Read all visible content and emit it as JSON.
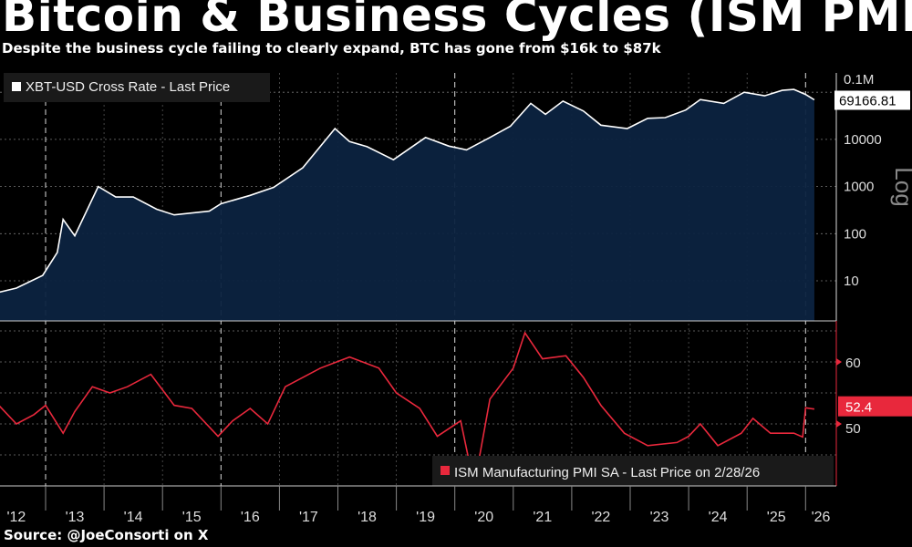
{
  "header": {
    "title": "Bitcoin & Business Cycles (ISM PMI",
    "subtitle": "Despite the business cycle failing to clearly expand, BTC has gone from $16k to $87k"
  },
  "footer": {
    "source": "Source: @JoeConsorti on X"
  },
  "chart_data": [
    {
      "type": "area",
      "series": [
        {
          "name": "XBT-USD Cross Rate - Last Price",
          "color": "#ffffff",
          "fill": "#0c2340",
          "x": [
            2012.0,
            2012.5,
            2012.95,
            2013.2,
            2013.3,
            2013.5,
            2013.9,
            2014.2,
            2014.5,
            2014.9,
            2015.2,
            2015.8,
            2016.0,
            2016.5,
            2016.9,
            2017.4,
            2017.95,
            2018.2,
            2018.5,
            2018.95,
            2019.5,
            2019.9,
            2020.2,
            2020.6,
            2020.95,
            2021.3,
            2021.55,
            2021.85,
            2022.2,
            2022.5,
            2022.95,
            2023.3,
            2023.6,
            2023.95,
            2024.2,
            2024.6,
            2024.95,
            2025.3,
            2025.6,
            2025.8,
            2026.0,
            2026.15
          ],
          "y": [
            5,
            7,
            13,
            40,
            200,
            90,
            1000,
            600,
            600,
            330,
            250,
            300,
            430,
            650,
            960,
            2500,
            17000,
            9000,
            7000,
            3700,
            11000,
            7200,
            6000,
            11000,
            19000,
            58000,
            34000,
            65000,
            40000,
            20000,
            17000,
            28000,
            29000,
            42000,
            70000,
            58000,
            100000,
            84000,
            110000,
            115000,
            90000,
            69166.81
          ]
        }
      ],
      "last_value_label": "69166.81",
      "ylabel": "Log",
      "yscale": "log",
      "yticks": [
        "10",
        "100",
        "1000",
        "10000",
        "0.1M"
      ],
      "grid": true
    },
    {
      "type": "line",
      "series": [
        {
          "name": "ISM Manufacturing PMI SA - Last Price on 2/28/26",
          "color": "#e8283c",
          "x": [
            2012.0,
            2012.2,
            2012.5,
            2012.8,
            2013.0,
            2013.3,
            2013.5,
            2013.8,
            2014.1,
            2014.4,
            2014.8,
            2015.2,
            2015.5,
            2015.95,
            2016.2,
            2016.5,
            2016.8,
            2017.1,
            2017.7,
            2018.2,
            2018.7,
            2019.0,
            2019.4,
            2019.7,
            2020.1,
            2020.3,
            2020.4,
            2020.6,
            2021.0,
            2021.2,
            2021.5,
            2021.9,
            2022.2,
            2022.5,
            2022.9,
            2023.3,
            2023.8,
            2024.0,
            2024.2,
            2024.5,
            2024.9,
            2025.1,
            2025.4,
            2025.8,
            2025.95,
            2026.0,
            2026.15
          ],
          "y": [
            52,
            53,
            50,
            51.5,
            53,
            48.5,
            52,
            56,
            55,
            56,
            58,
            53,
            52.5,
            48,
            50.5,
            52.5,
            50,
            56,
            59,
            60.8,
            59,
            55,
            52.5,
            48,
            50.5,
            41.5,
            43.5,
            54,
            59,
            64.7,
            60.5,
            61,
            57.5,
            53,
            48.5,
            46.5,
            47,
            48,
            50,
            46.5,
            48.5,
            50.9,
            48.5,
            48.5,
            47.9,
            52.6,
            52.4
          ]
        }
      ],
      "last_value_label": "52.4",
      "yticks": [
        "50",
        "60"
      ],
      "grid": true
    }
  ],
  "x_axis": {
    "tick_labels": [
      "'12",
      "'13",
      "'14",
      "'15",
      "'16",
      "'17",
      "'18",
      "'19",
      "'20",
      "'21",
      "'22",
      "'23",
      "'24",
      "'25",
      "'26"
    ]
  }
}
